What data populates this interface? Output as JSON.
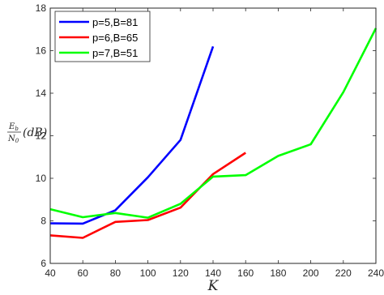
{
  "chart_data": {
    "type": "line",
    "title": "",
    "xlabel": "K",
    "ylabel": {
      "numerator": "E",
      "numerator_sub": "b",
      "denominator": "N",
      "denominator_sub": "0",
      "suffix": "(dB)"
    },
    "xlim": [
      40,
      240
    ],
    "ylim": [
      6,
      18
    ],
    "xticks": [
      40,
      60,
      80,
      100,
      120,
      140,
      160,
      180,
      200,
      220,
      240
    ],
    "yticks": [
      6,
      8,
      10,
      12,
      14,
      16,
      18
    ],
    "grid": false,
    "legend_position": "top-left",
    "series": [
      {
        "name": "p=5,B=81",
        "color": "#0000ff",
        "x": [
          40,
          60,
          80,
          100,
          120,
          140
        ],
        "y": [
          7.88,
          7.87,
          8.5,
          10.05,
          11.8,
          16.2
        ]
      },
      {
        "name": "p=6,B=65",
        "color": "#ff0000",
        "x": [
          40,
          60,
          80,
          100,
          120,
          140,
          160
        ],
        "y": [
          7.32,
          7.2,
          7.95,
          8.04,
          8.62,
          10.2,
          11.2
        ]
      },
      {
        "name": "p=7,B=51",
        "color": "#00ff00",
        "x": [
          40,
          60,
          80,
          100,
          120,
          140,
          160,
          180,
          200,
          220,
          240
        ],
        "y": [
          8.55,
          8.17,
          8.37,
          8.15,
          8.8,
          10.08,
          10.15,
          11.05,
          11.6,
          14.05,
          17.05
        ]
      }
    ]
  }
}
